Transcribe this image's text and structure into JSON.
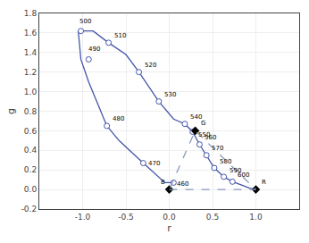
{
  "chart_data": {
    "type": "line",
    "xlabel": "r",
    "ylabel": "g",
    "xlim": [
      -1.5,
      1.5
    ],
    "ylim": [
      -0.2,
      1.8
    ],
    "xticks": [
      {
        "value": -1,
        "label": "-1.0"
      },
      -0.5,
      {
        "value": 0,
        "label": "0.0"
      },
      0.5,
      {
        "value": 1,
        "label": "1.0"
      }
    ],
    "yticks": [
      -0.2,
      {
        "value": 0,
        "label": "0.0"
      },
      0.2,
      0.4,
      0.6,
      0.8,
      {
        "value": 1,
        "label": "1.0"
      },
      1.2,
      1.4,
      1.6,
      1.8
    ],
    "grid": true,
    "series": [
      {
        "type": "line",
        "color": "#4455aa",
        "x": [
          0.05,
          -0.05,
          -0.3,
          -0.58,
          -0.72,
          -0.93,
          -1.02,
          -1.05,
          -0.88,
          -0.7,
          -0.5,
          -0.35,
          -0.12,
          0.05,
          0.18,
          0.27,
          0.35,
          0.43,
          0.52,
          0.63,
          0.73,
          0.85,
          0.94,
          1.0
        ],
        "values": [
          0.07,
          0.07,
          0.27,
          0.5,
          0.65,
          1.1,
          1.33,
          1.62,
          1.62,
          1.5,
          1.38,
          1.2,
          0.9,
          0.72,
          0.67,
          0.59,
          0.46,
          0.35,
          0.22,
          0.13,
          0.08,
          0.04,
          0.01,
          0.0
        ]
      },
      {
        "type": "scatter",
        "marker": "circle",
        "color": "#4455aa",
        "x": [
          0.05,
          -0.3,
          -0.72,
          -0.93,
          -1.02,
          -0.7,
          -0.35,
          -0.12,
          0.18,
          0.27,
          0.35,
          0.43,
          0.52,
          0.63,
          0.73
        ],
        "values": [
          0.07,
          0.27,
          0.65,
          1.33,
          1.62,
          1.5,
          1.2,
          0.9,
          0.67,
          0.59,
          0.46,
          0.35,
          0.22,
          0.13,
          0.08
        ],
        "labels": [
          "460",
          "470",
          "480",
          "490",
          "500",
          "510",
          "520",
          "530",
          "540",
          "550",
          "560",
          "570",
          "580",
          "590",
          "600"
        ]
      },
      {
        "type": "scatter",
        "marker": "diamond",
        "color": "#000000",
        "x": [
          0.0,
          0.3,
          1.0
        ],
        "values": [
          0.0,
          0.6,
          0.0
        ],
        "labels": [
          "B",
          "G",
          "R"
        ]
      },
      {
        "type": "line",
        "line_style": "dashed",
        "color": "#8899bb",
        "x": [
          0.0,
          1.0,
          0.3,
          0.0
        ],
        "values": [
          0.0,
          0.0,
          0.6,
          0.0
        ]
      }
    ]
  }
}
